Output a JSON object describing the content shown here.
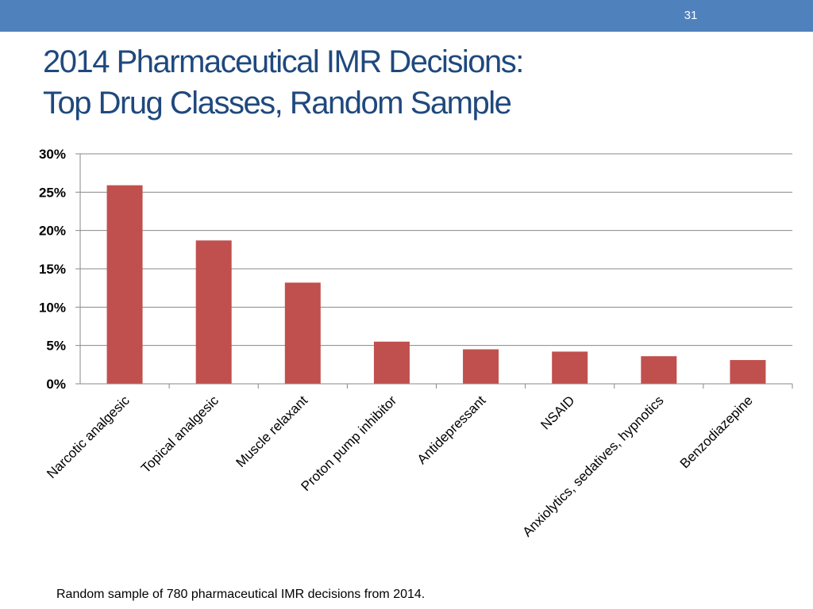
{
  "slide": {
    "number": "31",
    "title_line1": "2014 Pharmaceutical IMR Decisions:",
    "title_line2": "Top Drug Classes, Random Sample",
    "caption": "Random sample of 780 pharmaceutical IMR decisions from 2014.",
    "header_color": "#4f81bd",
    "title_color": "#1f497d"
  },
  "chart_data": {
    "type": "bar",
    "title": "",
    "xlabel": "",
    "ylabel": "",
    "categories": [
      "Narcotic analgesic",
      "Topical analgesic",
      "Muscle relaxant",
      "Proton pump inhibitor",
      "Antidepressant",
      "NSAID",
      "Anxiolytics, sedatives, hypnotics",
      "Benzodiazepine"
    ],
    "values": [
      25.9,
      18.7,
      13.2,
      5.5,
      4.5,
      4.2,
      3.6,
      3.1
    ],
    "ylim": [
      0,
      30
    ],
    "yticks": [
      0,
      5,
      10,
      15,
      20,
      25,
      30
    ],
    "ytick_labels": [
      "0%",
      "5%",
      "10%",
      "15%",
      "20%",
      "25%",
      "30%"
    ],
    "grid": true,
    "legend": "none",
    "bar_color": "#c0504d"
  }
}
